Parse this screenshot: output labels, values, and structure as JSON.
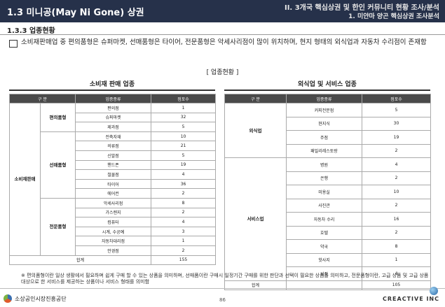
{
  "header": {
    "title": "1.3 미니공(May Ni Gone) 상권",
    "right_line1": "II. 3개국 핵심상권 및 한인 커뮤니티 현황 조사/분석",
    "right_line2": "1. 미얀마 양곤 핵심상권 조사분석"
  },
  "section": {
    "subtitle": "1.3.3 업종현황",
    "paragraph": "소비재판매업 중 편의품형은 슈퍼마켓, 선매품형은 타이어, 전문품형은 악세사리점이 많이 위치하며, 현지 형태의 외식업과 자동차 수리점이 존재함",
    "caption": "[ 업종현황 ]"
  },
  "left_table": {
    "title": "소비재 판매 업종",
    "headers": [
      "구 분",
      "업종종류",
      "점포수"
    ],
    "main_category": "소비재판매",
    "groups": [
      {
        "name": "편의품형",
        "rows": [
          [
            "편의점",
            "1"
          ],
          [
            "슈퍼마켓",
            "32"
          ],
          [
            "제과점",
            "5"
          ]
        ]
      },
      {
        "name": "선매품형",
        "rows": [
          [
            "전축자재",
            "10"
          ],
          [
            "의류점",
            "21"
          ],
          [
            "신발점",
            "5"
          ],
          [
            "핸드폰",
            "19"
          ],
          [
            "철물점",
            "4"
          ],
          [
            "타이어",
            "36"
          ],
          [
            "에어컨",
            "2"
          ]
        ]
      },
      {
        "name": "전문품형",
        "rows": [
          [
            "악세사리점",
            "8"
          ],
          [
            "가스렌지",
            "2"
          ],
          [
            "컴퓨터",
            "4"
          ],
          [
            "시계, 수공예",
            "3"
          ],
          [
            "자동차대리점",
            "1"
          ],
          [
            "안경점",
            "2"
          ]
        ]
      }
    ],
    "total_label": "합계",
    "total_value": "155"
  },
  "right_table": {
    "title": "외식업 및 서비스 업종",
    "headers": [
      "구 분",
      "업종종류",
      "점포수"
    ],
    "groups": [
      {
        "name": "외식업",
        "rows": [
          [
            "커피전문점",
            "5"
          ],
          [
            "현지식",
            "30"
          ],
          [
            "주점",
            "19"
          ],
          [
            "패밀리레스토랑",
            "2"
          ]
        ]
      },
      {
        "name": "서비스업",
        "rows": [
          [
            "병원",
            "4"
          ],
          [
            "은행",
            "2"
          ],
          [
            "미용실",
            "10"
          ],
          [
            "사진관",
            "2"
          ],
          [
            "자동차 수리",
            "16"
          ],
          [
            "호텔",
            "2"
          ],
          [
            "약국",
            "8"
          ],
          [
            "핫사지",
            "1"
          ],
          [
            "서점",
            "4"
          ]
        ]
      }
    ],
    "total_label": "합계",
    "total_value": "105"
  },
  "note": "※ 편의품형이란 일상 생활에서 필요하며 쉽게 구매 할 수 있는 상품을 의미하며, 선매품이란 구매시 일정기간 구매를 위한 판단과 선택이 필요한 상품을 의미하고, 전문품형이란, 고급 상품 및 고급 상품 대상으로 한 서비스를 제공하는 상품이나 서비스 형태를 의미함",
  "footer": {
    "left_logo_text": "소상공인시장진흥공단",
    "page_number": "86",
    "right_logo_text": "CREACTIVE INC"
  }
}
